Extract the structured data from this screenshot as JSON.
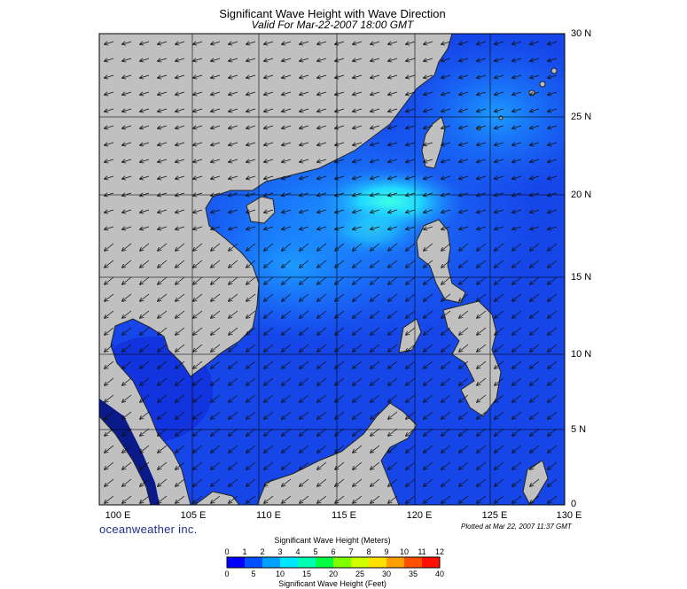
{
  "header": {
    "title": "Significant Wave Height with Wave Direction",
    "subtitle": "Valid For Mar-22-2007 18:00 GMT"
  },
  "map": {
    "region": "South China Sea",
    "extent": {
      "lon": [
        100,
        130
      ],
      "lat": [
        0,
        30
      ]
    },
    "lon_labels": [
      "100 E",
      "105 E",
      "110 E",
      "115 E",
      "120 E",
      "125 E",
      "130 E"
    ],
    "lat_labels": [
      "30 N",
      "25 N",
      "20 N",
      "15 N",
      "10 N",
      "5 N",
      "0"
    ],
    "land_color": "#c0c0c0",
    "sea_colors": {
      "low": "#1238e0",
      "mid": "#1e78ff",
      "high": "#18d0ff",
      "peak": "#32ffe6"
    },
    "wave_direction": "from northeast toward southwest"
  },
  "footer": {
    "brand": "oceanweather inc.",
    "plotted": "Plotted at Mar 22, 2007 11:37 GMT"
  },
  "colorbar": {
    "title_meters": "Significant Wave Height (Meters)",
    "title_feet": "Significant Wave Height (Feet)",
    "meters_ticks": [
      "0",
      "1",
      "2",
      "3",
      "4",
      "5",
      "6",
      "7",
      "8",
      "9",
      "10",
      "11",
      "12"
    ],
    "feet_ticks": [
      "0",
      "5",
      "10",
      "15",
      "20",
      "25",
      "30",
      "35",
      "40"
    ],
    "colors": [
      "#0000ff",
      "#0050ff",
      "#00a0ff",
      "#00e6ff",
      "#00ffb4",
      "#00ff40",
      "#80ff00",
      "#d0ff00",
      "#ffe000",
      "#ffa000",
      "#ff5000",
      "#ff1000"
    ]
  }
}
